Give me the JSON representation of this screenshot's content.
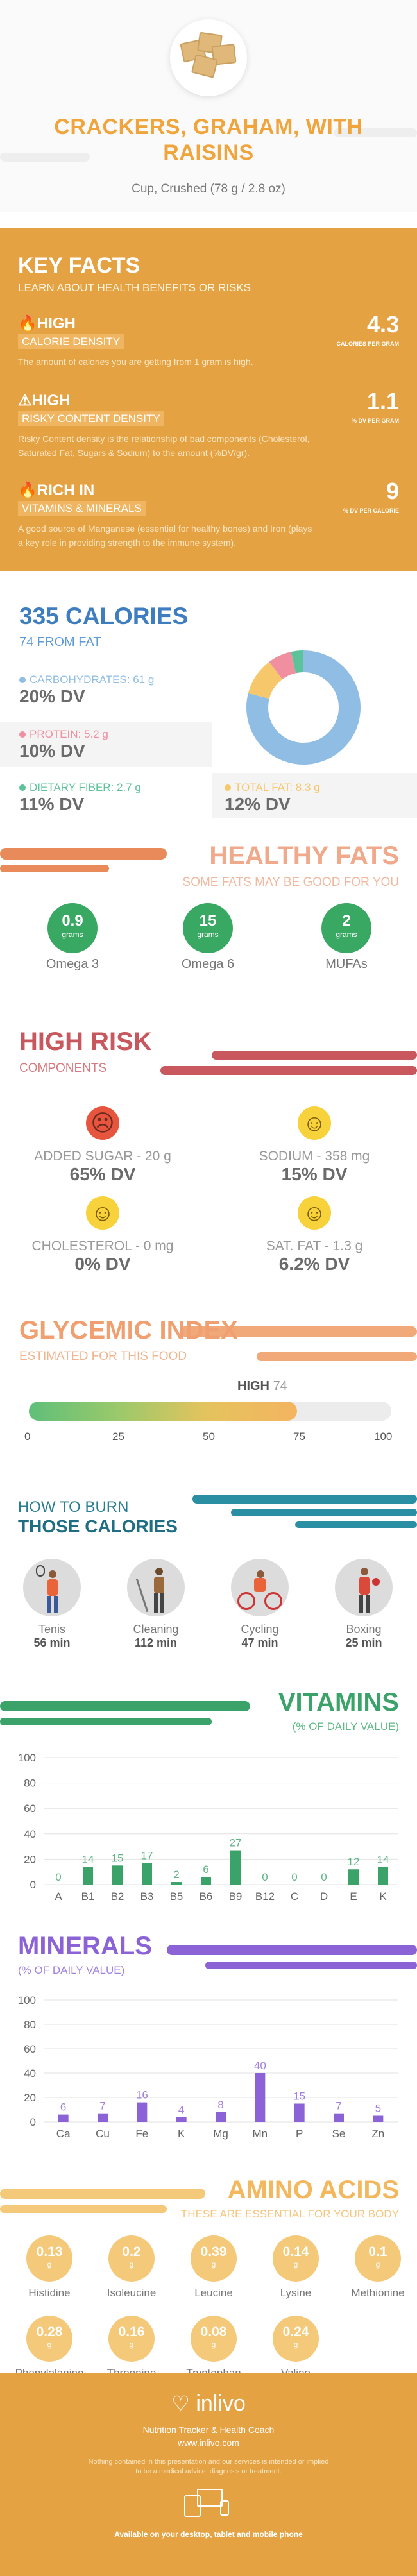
{
  "header": {
    "title_line1": "CRACKERS, GRAHAM, WITH",
    "title_line2": "RAISINS",
    "serving": "Cup, Crushed (78 g / 2.8 oz)"
  },
  "key_facts": {
    "title": "KEY FACTS",
    "subtitle": "LEARN ABOUT HEALTH BENEFITS OR RISKS",
    "items": [
      {
        "icon": "flame-icon",
        "tag": "HIGH",
        "tagline": "CALORIE DENSITY",
        "desc": "The amount of calories you are getting from 1 gram is high.",
        "value": "4.3",
        "unit": "CALORIES PER GRAM"
      },
      {
        "icon": "warning-icon",
        "tag": "HIGH",
        "tagline": "RISKY CONTENT DENSITY",
        "desc": "Risky Content density is the relationship of bad components (Cholesterol, Saturated Fat, Sugars & Sodium) to the amount (%DV/gr).",
        "value": "1.1",
        "unit": "% DV PER GRAM"
      },
      {
        "icon": "flame-icon",
        "tag": "RICH  IN",
        "tagline": "VITAMINS & MINERALS",
        "desc": "A good source of Manganese (essential for healthy bones) and Iron (plays a key role in providing strength to the immune system).",
        "value": "9",
        "unit": "% DV PER CALORIE"
      }
    ]
  },
  "calories": {
    "title": "335 CALORIES",
    "subtitle": "74 FROM FAT",
    "nutrients": [
      {
        "label": "CARBOHYDRATES: 61 g",
        "dv": "20% DV",
        "color": "#8fbde3"
      },
      {
        "label": "PROTEIN: 5.2 g",
        "dv": "10% DV",
        "color": "#ef8fa0"
      },
      {
        "label": "DIETARY FIBER: 2.7 g",
        "dv": "11% DV",
        "color": "#5cc29a"
      },
      {
        "label": "TOTAL FAT: 8.3 g",
        "dv": "12% DV",
        "color": "#f6c86b"
      }
    ],
    "donut": [
      {
        "name": "carbohydrates",
        "value": 61,
        "color": "#8fbde3"
      },
      {
        "name": "dietary fiber",
        "value": 2.7,
        "color": "#5cc29a"
      },
      {
        "name": "protein",
        "value": 5.2,
        "color": "#ef8fa0"
      },
      {
        "name": "total fat",
        "value": 8.3,
        "color": "#f6c86b"
      }
    ]
  },
  "healthy_fats": {
    "title": "HEALTHY FATS",
    "subtitle": "SOME FATS MAY BE GOOD FOR YOU",
    "items": [
      {
        "value": "0.9",
        "unit": "grams",
        "name": "Omega 3"
      },
      {
        "value": "15",
        "unit": "grams",
        "name": "Omega 6"
      },
      {
        "value": "2",
        "unit": "grams",
        "name": "MUFAs"
      }
    ]
  },
  "high_risk": {
    "title": "HIGH RISK",
    "subtitle": "COMPONENTS",
    "items": [
      {
        "label": "ADDED SUGAR - 20 g",
        "dv": "65% DV",
        "face": "sad-face-icon",
        "glyph": "☹",
        "color": "#e8553e"
      },
      {
        "label": "SODIUM - 358 mg",
        "dv": "15% DV",
        "face": "smile-face-icon",
        "glyph": "☺",
        "color": "#f8d23a"
      },
      {
        "label": "CHOLESTEROL - 0 mg",
        "dv": "0% DV",
        "face": "grin-face-icon",
        "glyph": "☺",
        "color": "#f8d23a"
      },
      {
        "label": "SAT. FAT - 1.3 g",
        "dv": "6.2% DV",
        "face": "smile-face-icon",
        "glyph": "☺",
        "color": "#f8d23a"
      }
    ]
  },
  "glycemic": {
    "title": "GLYCEMIC INDEX",
    "subtitle": "ESTIMATED FOR THIS FOOD",
    "level": "HIGH",
    "value": 74,
    "value_text": "74",
    "ticks": [
      "0",
      "25",
      "50",
      "75",
      "100"
    ]
  },
  "burn": {
    "title_line1": "HOW TO BURN",
    "title_line2": "THOSE CALORIES",
    "activities": [
      {
        "name": "Tenis",
        "minutes": "56 min",
        "icon": "tennis-player-icon"
      },
      {
        "name": "Cleaning",
        "minutes": "112 min",
        "icon": "cleaning-person-icon"
      },
      {
        "name": "Cycling",
        "minutes": "47 min",
        "icon": "cyclist-icon"
      },
      {
        "name": "Boxing",
        "minutes": "25 min",
        "icon": "boxer-icon"
      }
    ]
  },
  "vitamins": {
    "title": "VITAMINS",
    "subtitle": "(% OF DAILY VALUE)",
    "color": "#3ba36a",
    "chart_data": {
      "type": "bar",
      "categories": [
        "A",
        "B1",
        "B2",
        "B3",
        "B5",
        "B6",
        "B9",
        "B12",
        "C",
        "D",
        "E",
        "K"
      ],
      "values": [
        0,
        14,
        15,
        17,
        2,
        6,
        27,
        0,
        0,
        0,
        12,
        14
      ],
      "ylim": [
        0,
        100
      ],
      "yticks": [
        0,
        20,
        40,
        60,
        80,
        100
      ]
    }
  },
  "minerals": {
    "title": "MINERALS",
    "subtitle": "(% OF DAILY VALUE)",
    "color": "#8b63d6",
    "chart_data": {
      "type": "bar",
      "categories": [
        "Ca",
        "Cu",
        "Fe",
        "K",
        "Mg",
        "Mn",
        "P",
        "Se",
        "Zn"
      ],
      "values": [
        6,
        7,
        16,
        4,
        8,
        40,
        15,
        7,
        5
      ],
      "ylim": [
        0,
        100
      ],
      "yticks": [
        0,
        20,
        40,
        60,
        80,
        100
      ]
    }
  },
  "amino": {
    "title": "AMINO ACIDS",
    "subtitle": "THESE ARE ESSENTIAL FOR YOUR BODY",
    "items": [
      {
        "value": "0.13",
        "unit": "g",
        "name": "Histidine"
      },
      {
        "value": "0.2",
        "unit": "g",
        "name": "Isoleucine"
      },
      {
        "value": "0.39",
        "unit": "g",
        "name": "Leucine"
      },
      {
        "value": "0.14",
        "unit": "g",
        "name": "Lysine"
      },
      {
        "value": "0.1",
        "unit": "g",
        "name": "Methionine"
      },
      {
        "value": "0.28",
        "unit": "g",
        "name": "Phenylalanine"
      },
      {
        "value": "0.16",
        "unit": "g",
        "name": "Threonine"
      },
      {
        "value": "0.08",
        "unit": "g",
        "name": "Tryptophan"
      },
      {
        "value": "0.24",
        "unit": "g",
        "name": "Valine"
      }
    ]
  },
  "footer": {
    "brand": "inlivo",
    "tagline": "Nutrition Tracker & Health Coach",
    "url": "www.inlivo.com",
    "disclaimer_line1": "Nothing contained in this presentation and our services is intended or implied",
    "disclaimer_line2": "to be a medical advice, diagnosis or treatment.",
    "availability": "Available on your desktop, tablet and mobile phone"
  }
}
